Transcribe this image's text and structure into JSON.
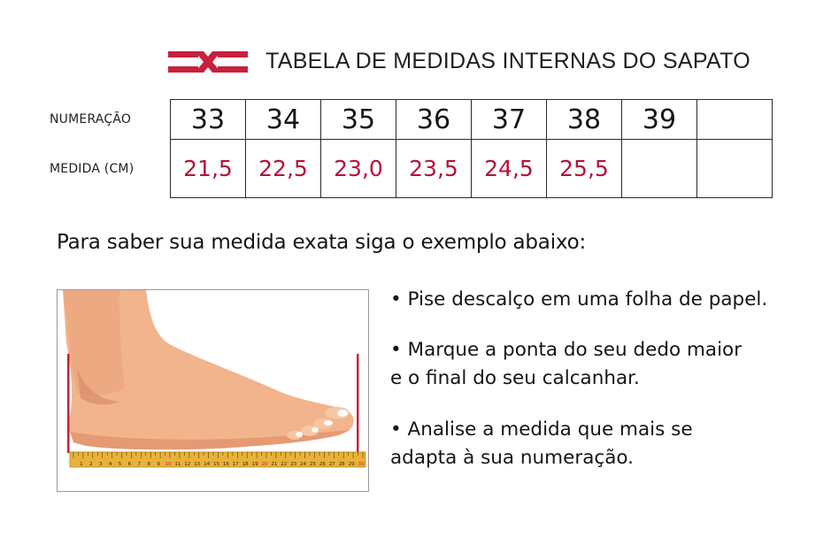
{
  "header": {
    "title": "TABELA DE MEDIDAS INTERNAS DO SAPATO",
    "logo_color": "#c8203e"
  },
  "table": {
    "row_label_size": "NUMERAÇÃO",
    "row_label_measure": "MEDIDA (CM)",
    "sizes": [
      "33",
      "34",
      "35",
      "36",
      "37",
      "38",
      "39",
      ""
    ],
    "measures": [
      "21,5",
      "22,5",
      "23,0",
      "23,5",
      "24,5",
      "25,5",
      "",
      ""
    ],
    "measure_color": "#b5123a"
  },
  "instruction": "Para saber sua medida exata siga o exemplo abaixo:",
  "steps": {
    "step1": "• Pise descalço em uma folha de papel.",
    "step2_line1": "• Marque a ponta do seu dedo maior",
    "step2_line2": "e o final do seu calcanhar.",
    "step3_line1": "• Analise a medida que mais se",
    "step3_line2": "adapta à sua numeração."
  },
  "illustration": {
    "ruler_numbers": [
      "1",
      "2",
      "3",
      "4",
      "5",
      "6",
      "7",
      "8",
      "9",
      "10",
      "11",
      "12",
      "13",
      "14",
      "15",
      "16",
      "17",
      "18",
      "19",
      "20",
      "21",
      "22",
      "23",
      "24",
      "25",
      "26",
      "27",
      "28",
      "29",
      "30"
    ],
    "ruler_color": "#e8b23a",
    "skin_color": "#f2b48c",
    "marker_color": "#c8203e"
  }
}
